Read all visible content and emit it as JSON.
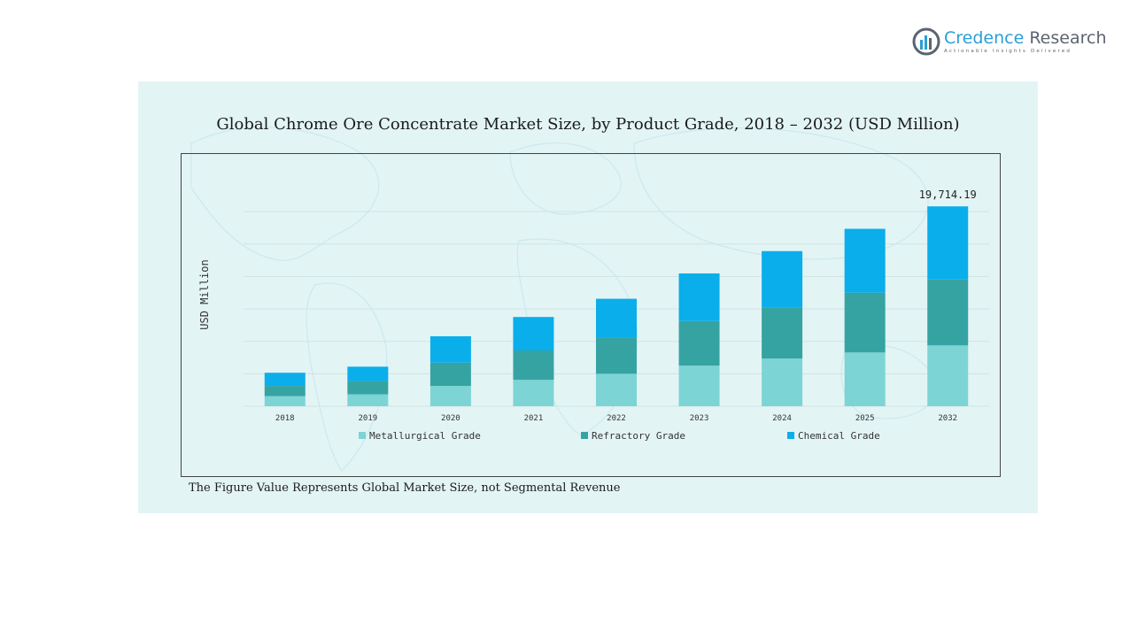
{
  "brand": {
    "name_primary": "Credence",
    "name_secondary": "Research",
    "tagline": "Actionable Insights Delivered"
  },
  "footnote": "The Figure Value Represents Global Market Size, not Segmental Revenue",
  "colors": {
    "metallurgical": "#7dd4d4",
    "refractory": "#36a3a3",
    "chemical": "#0aaeea",
    "panel_bg": "#e3f4f5",
    "grid": "#cfe3e4"
  },
  "chart_data": {
    "type": "bar",
    "stacked": true,
    "title": "Global Chrome Ore Concentrate Market Size, by Product Grade, 2018 – 2032 (USD Million)",
    "xlabel": "",
    "ylabel": "USD Million",
    "ylim": [
      0,
      22000
    ],
    "grid": true,
    "legend_position": "bottom",
    "categories": [
      "2018",
      "2019",
      "2020",
      "2021",
      "2022",
      "2023",
      "2024",
      "2025",
      "2032"
    ],
    "series": [
      {
        "name": "Metallurgical Grade",
        "color": "#7dd4d4",
        "values": [
          1000,
          1180,
          2000,
          2600,
          3200,
          4000,
          4700,
          5300,
          6000
        ]
      },
      {
        "name": "Refractory Grade",
        "color": "#36a3a3",
        "values": [
          1000,
          1300,
          2300,
          2900,
          3600,
          4400,
          5000,
          5900,
          6500
        ]
      },
      {
        "name": "Chemical Grade",
        "color": "#0aaeea",
        "values": [
          1300,
          1420,
          2600,
          3300,
          3800,
          4700,
          5600,
          6300,
          7214.19
        ]
      }
    ],
    "annotations": [
      {
        "category": "2032",
        "label": "19,714.19"
      }
    ]
  }
}
